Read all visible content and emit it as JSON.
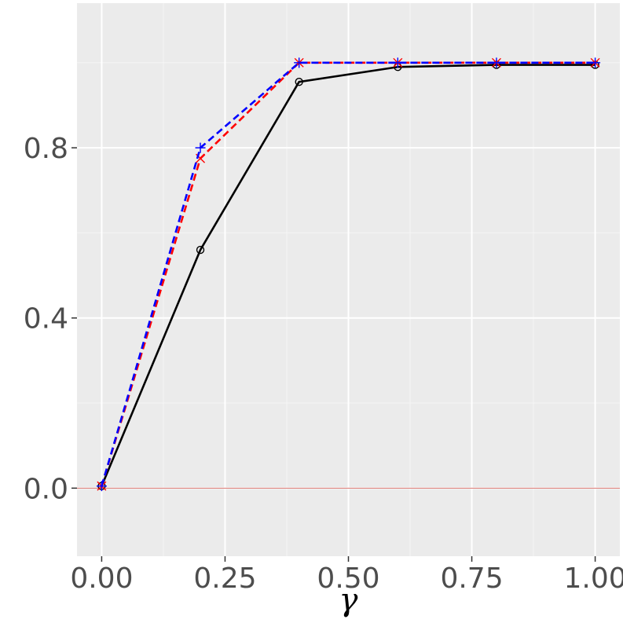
{
  "chart_data": {
    "type": "line",
    "title": "",
    "xlabel": "γ",
    "ylabel": "",
    "xlim": [
      -0.05,
      1.05
    ],
    "ylim": [
      -0.16,
      1.14
    ],
    "x_ticks": [
      0.0,
      0.25,
      0.5,
      0.75,
      1.0
    ],
    "x_tick_labels": [
      "0.00",
      "0.25",
      "0.50",
      "0.75",
      "1.00"
    ],
    "y_ticks": [
      0.0,
      0.4,
      0.8
    ],
    "y_tick_labels": [
      "0.0",
      "0.4",
      "0.8"
    ],
    "x": [
      0.0,
      0.2,
      0.4,
      0.6,
      0.8,
      1.0
    ],
    "series": [
      {
        "values": [
          0.005,
          0.56,
          0.955,
          0.99,
          0.995,
          0.995
        ],
        "color": "#000000",
        "dash": "solid",
        "marker": "circle"
      },
      {
        "values": [
          0.005,
          0.775,
          1.0,
          1.0,
          1.0,
          1.0
        ],
        "color": "#ff0000",
        "dash": "dashed",
        "marker": "x"
      },
      {
        "values": [
          0.005,
          0.8,
          1.0,
          1.0,
          1.0,
          1.0
        ],
        "color": "#0000ff",
        "dash": "dashed",
        "marker": "plus"
      }
    ],
    "reference_lines": [
      {
        "axis": "y",
        "value": 0.0,
        "color": "#d9756f"
      }
    ],
    "grid": true,
    "background": "#ebebeb",
    "legend": "none"
  }
}
